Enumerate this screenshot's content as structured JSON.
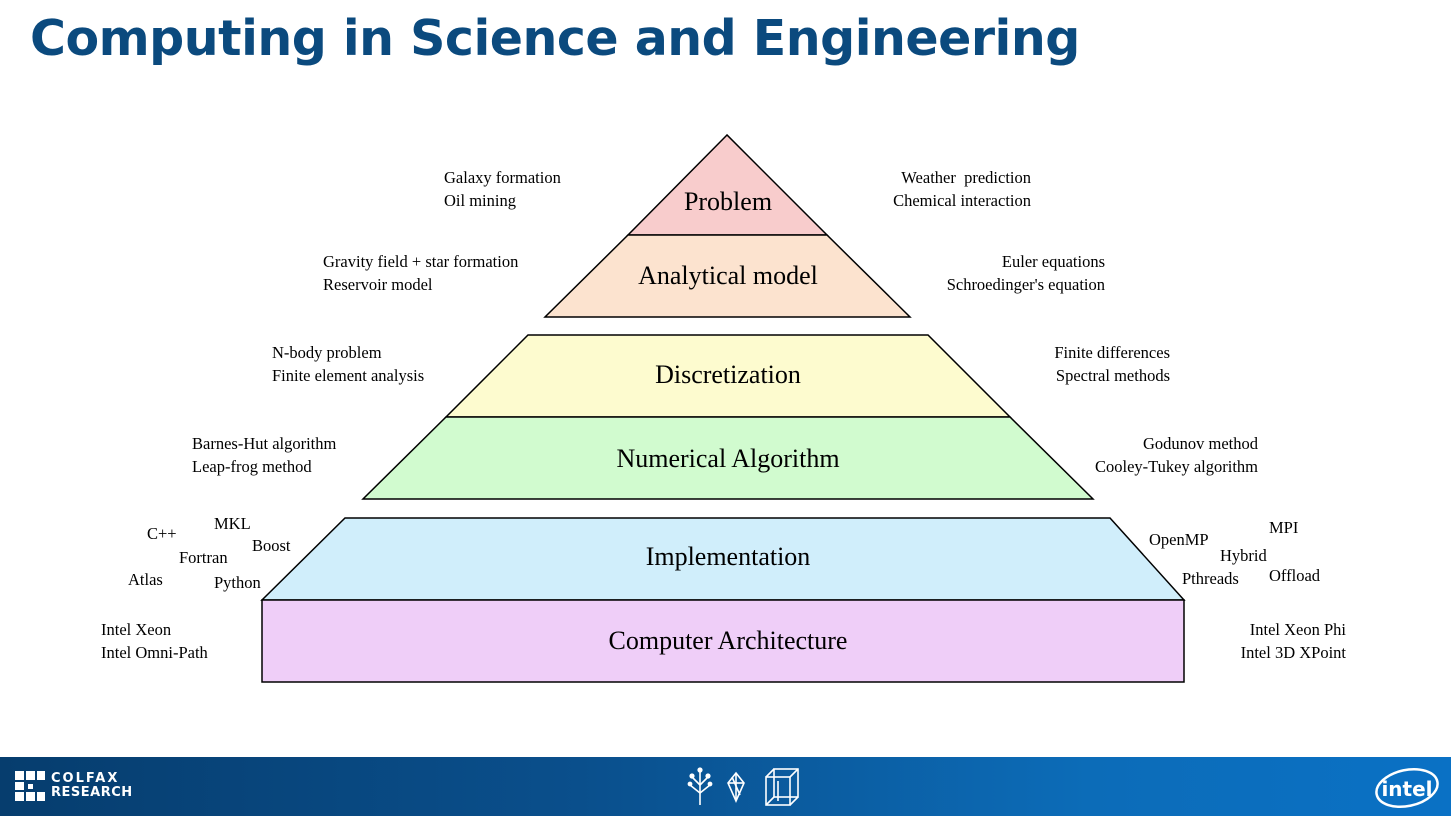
{
  "title": "Computing in Science and Engineering",
  "layers": [
    {
      "label": "Problem",
      "color": "#f8cccc"
    },
    {
      "label": "Analytical model",
      "color": "#fce3cf"
    },
    {
      "label": "Discretization",
      "color": "#fdfbcf"
    },
    {
      "label": "Numerical Algorithm",
      "color": "#d1fbcf"
    },
    {
      "label": "Implementation",
      "color": "#d0eefb"
    },
    {
      "label": "Computer Architecture",
      "color": "#efcef8"
    }
  ],
  "notes": {
    "problem": {
      "left": [
        "Galaxy formation",
        "Oil mining"
      ],
      "right": [
        "Weather  prediction",
        "Chemical interaction"
      ]
    },
    "analytical": {
      "left": [
        "Gravity field + star formation",
        "Reservoir model"
      ],
      "right": [
        "Euler equations",
        "Schroedinger's equation"
      ]
    },
    "discretization": {
      "left": [
        "N-body problem",
        "Finite element analysis"
      ],
      "right": [
        "Finite differences",
        "Spectral methods"
      ]
    },
    "numerical": {
      "left": [
        "Barnes-Hut algorithm",
        "Leap-frog method"
      ],
      "right": [
        "Godunov method",
        "Cooley-Tukey algorithm"
      ]
    },
    "architecture": {
      "left": [
        "Intel Xeon",
        "Intel Omni-Path"
      ],
      "right": [
        "Intel Xeon Phi",
        "Intel 3D XPoint"
      ]
    }
  },
  "implementation_tools": {
    "left": [
      "MKL",
      "C++",
      "Boost",
      "Fortran",
      "Atlas",
      "Python"
    ],
    "right": [
      "MPI",
      "OpenMP",
      "Hybrid",
      "Pthreads",
      "Offload"
    ]
  },
  "footer": {
    "colfax_line1": "COLFAX",
    "colfax_line2": "RESEARCH",
    "intel_logo": "intel"
  },
  "colors": {
    "title": "#0b4a7e",
    "footer": "#0a4f8c"
  }
}
